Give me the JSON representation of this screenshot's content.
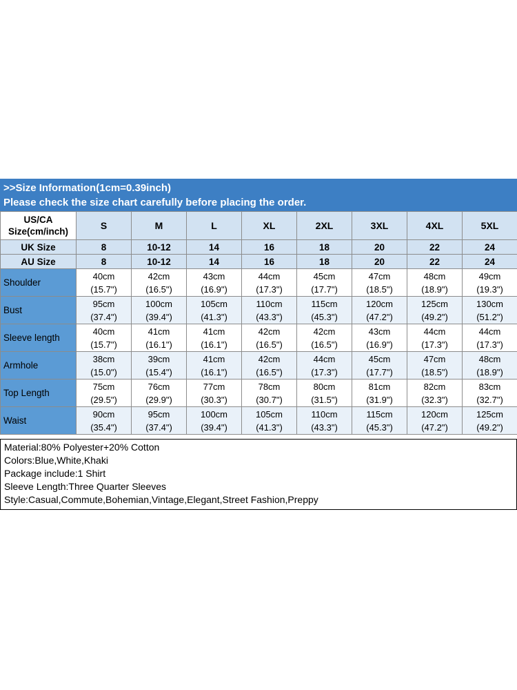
{
  "colors": {
    "banner_bg": "#3d7fc4",
    "header_cell_bg": "#d2e2f2",
    "label_col_bg": "#5b9bd5",
    "alt_row_bg": "#e9f1f9",
    "border": "#8c8c8c"
  },
  "banner": {
    "line1": ">>Size Information(1cm=0.39inch)",
    "line2": "Please check the size chart carefully before placing the order."
  },
  "size_table": {
    "corner": {
      "line1": "US/CA",
      "line2": "Size(cm/inch)"
    },
    "sizes": [
      "S",
      "M",
      "L",
      "XL",
      "2XL",
      "3XL",
      "4XL",
      "5XL"
    ],
    "size_rows": [
      {
        "label": "UK Size",
        "values": [
          "8",
          "10-12",
          "14",
          "16",
          "18",
          "20",
          "22",
          "24"
        ]
      },
      {
        "label": "AU Size",
        "values": [
          "8",
          "10-12",
          "14",
          "16",
          "18",
          "20",
          "22",
          "24"
        ]
      }
    ],
    "measurement_rows": [
      {
        "label": "Shoulder",
        "cm": [
          "40cm",
          "42cm",
          "43cm",
          "44cm",
          "45cm",
          "47cm",
          "48cm",
          "49cm"
        ],
        "inch": [
          "(15.7\")",
          "(16.5\")",
          "(16.9\")",
          "(17.3\")",
          "(17.7\")",
          "(18.5\")",
          "(18.9\")",
          "(19.3\")"
        ]
      },
      {
        "label": "Bust",
        "cm": [
          "95cm",
          "100cm",
          "105cm",
          "110cm",
          "115cm",
          "120cm",
          "125cm",
          "130cm"
        ],
        "inch": [
          "(37.4\")",
          "(39.4\")",
          "(41.3\")",
          "(43.3\")",
          "(45.3\")",
          "(47.2\")",
          "(49.2\")",
          "(51.2\")"
        ]
      },
      {
        "label": "Sleeve length",
        "cm": [
          "40cm",
          "41cm",
          "41cm",
          "42cm",
          "42cm",
          "43cm",
          "44cm",
          "44cm"
        ],
        "inch": [
          "(15.7\")",
          "(16.1\")",
          "(16.1\")",
          "(16.5\")",
          "(16.5\")",
          "(16.9\")",
          "(17.3\")",
          "(17.3\")"
        ]
      },
      {
        "label": "Armhole",
        "cm": [
          "38cm",
          "39cm",
          "41cm",
          "42cm",
          "44cm",
          "45cm",
          "47cm",
          "48cm"
        ],
        "inch": [
          "(15.0\")",
          "(15.4\")",
          "(16.1\")",
          "(16.5\")",
          "(17.3\")",
          "(17.7\")",
          "(18.5\")",
          "(18.9\")"
        ]
      },
      {
        "label": "Top Length",
        "cm": [
          "75cm",
          "76cm",
          "77cm",
          "78cm",
          "80cm",
          "81cm",
          "82cm",
          "83cm"
        ],
        "inch": [
          "(29.5\")",
          "(29.9\")",
          "(30.3\")",
          "(30.7\")",
          "(31.5\")",
          "(31.9\")",
          "(32.3\")",
          "(32.7\")"
        ]
      },
      {
        "label": "Waist",
        "cm": [
          "90cm",
          "95cm",
          "100cm",
          "105cm",
          "110cm",
          "115cm",
          "120cm",
          "125cm"
        ],
        "inch": [
          "(35.4\")",
          "(37.4\")",
          "(39.4\")",
          "(41.3\")",
          "(43.3\")",
          "(45.3\")",
          "(47.2\")",
          "(49.2\")"
        ]
      }
    ]
  },
  "details": {
    "material": "Material:80% Polyester+20% Cotton",
    "colors_line": "Colors:Blue,White,Khaki",
    "package": "Package include:1 Shirt",
    "sleeve_length": "Sleeve Length:Three Quarter Sleeves",
    "style": "Style:Casual,Commute,Bohemian,Vintage,Elegant,Street Fashion,Preppy"
  }
}
